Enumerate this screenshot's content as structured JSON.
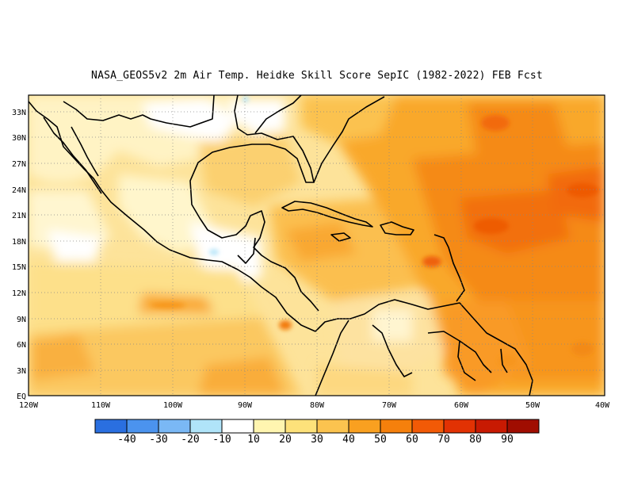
{
  "title": "NASA_GEOS5v2  2m Air Temp. Heidke Skill Score SepIC (1982-2022) FEB Fcst",
  "map": {
    "lat_labels": [
      "33N",
      "30N",
      "27N",
      "24N",
      "21N",
      "18N",
      "15N",
      "12N",
      "9N",
      "6N",
      "3N",
      "EQ"
    ],
    "lon_labels": [
      "120W",
      "110W",
      "100W",
      "90W",
      "80W",
      "70W",
      "60W",
      "50W",
      "40W"
    ],
    "extent": {
      "lon_min": -120,
      "lon_max": -40,
      "lat_min": 0,
      "lat_max": 35
    }
  },
  "colorbar": {
    "colors": [
      "#2a6fe0",
      "#4b93ee",
      "#7ab8f5",
      "#b0e4f9",
      "#ffffff",
      "#fff5b0",
      "#fde17a",
      "#fbc34f",
      "#f9a020",
      "#f5800c",
      "#f25a06",
      "#e23203",
      "#c81a02",
      "#a00d01"
    ],
    "labels": [
      "-40",
      "-30",
      "-20",
      "-10",
      "10",
      "20",
      "30",
      "40",
      "50",
      "60",
      "70",
      "80",
      "90"
    ]
  },
  "colors": {
    "ocean_base": "#fde6a0",
    "land_base": "#fff2c0"
  }
}
